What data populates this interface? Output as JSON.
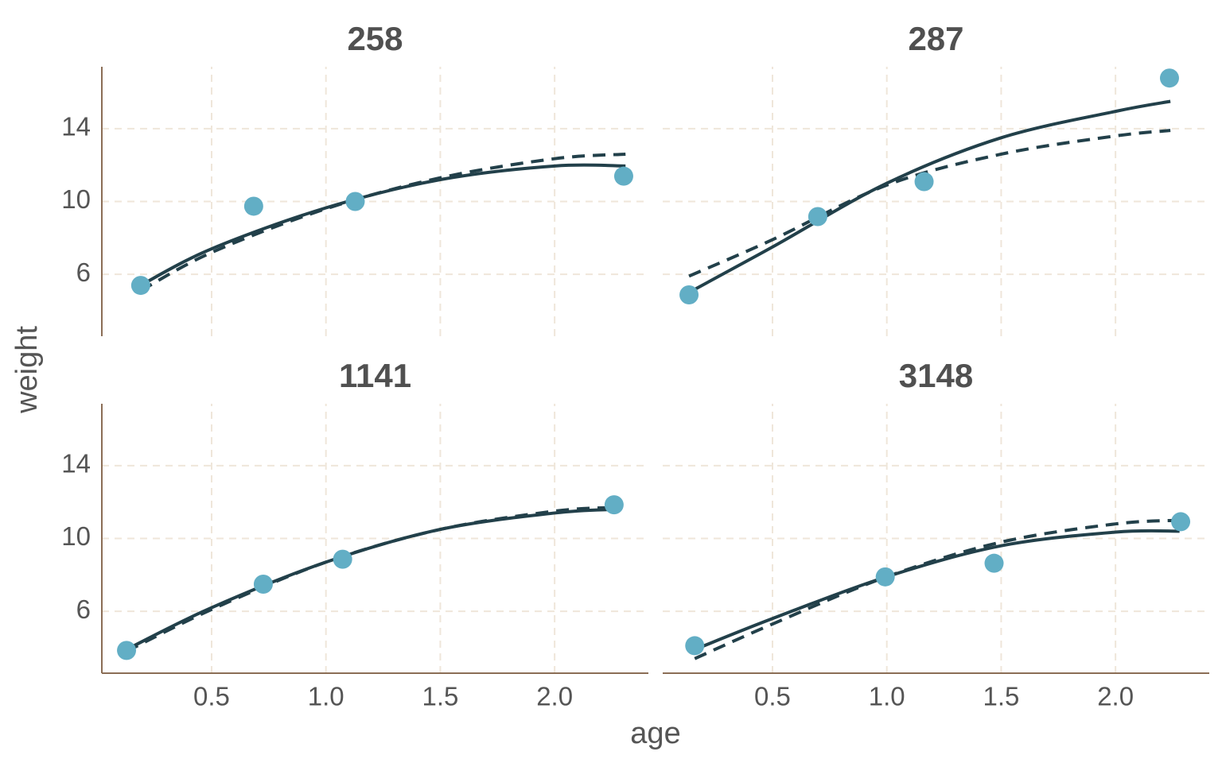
{
  "chart_data": {
    "type": "scatter",
    "xlabel": "age",
    "ylabel": "weight",
    "xlim": [
      0.02,
      2.41
    ],
    "ylim": [
      2.6,
      17.4
    ],
    "xticks": [
      0.5,
      {
        "value": 1,
        "label": "1.0"
      },
      1.5,
      {
        "value": 2,
        "label": "2.0"
      }
    ],
    "yticks": [
      6,
      10,
      14
    ],
    "grid": true,
    "point_color": "#62aec5",
    "line_color": "#22404a",
    "grid_color": "#efe6da",
    "axis_color": "#8b6e56",
    "facets": [
      {
        "title": "258",
        "points": {
          "x": [
            0.19,
            0.684,
            1.128,
            2.302
          ],
          "y": [
            5.39,
            9.74,
            10.0,
            11.39
          ]
        },
        "lines": [
          {
            "style": "solid",
            "x": [
              0.19,
              0.5,
              1.0,
              1.5,
              2.0,
              2.31
            ],
            "y": [
              5.4,
              7.4,
              9.65,
              11.2,
              11.95,
              11.95
            ]
          },
          {
            "style": "dashed",
            "x": [
              0.19,
              0.5,
              1.0,
              1.5,
              2.0,
              2.31
            ],
            "y": [
              5.1,
              7.2,
              9.6,
              11.3,
              12.35,
              12.6
            ]
          }
        ]
      },
      {
        "title": "287",
        "points": {
          "x": [
            0.135,
            0.698,
            1.163,
            2.236
          ],
          "y": [
            4.87,
            9.17,
            11.09,
            16.78
          ]
        },
        "lines": [
          {
            "style": "solid",
            "x": [
              0.135,
              0.5,
              1.0,
              1.5,
              2.0,
              2.24
            ],
            "y": [
              5.0,
              7.5,
              11.0,
              13.5,
              14.95,
              15.5
            ]
          },
          {
            "style": "dashed",
            "x": [
              0.135,
              0.5,
              1.0,
              1.5,
              2.0,
              2.24
            ],
            "y": [
              5.9,
              7.9,
              10.9,
              12.6,
              13.6,
              13.9
            ]
          }
        ]
      },
      {
        "title": "1141",
        "points": {
          "x": [
            0.128,
            0.726,
            1.073,
            2.26
          ],
          "y": [
            3.85,
            7.49,
            8.86,
            11.85
          ]
        },
        "lines": [
          {
            "style": "solid",
            "x": [
              0.128,
              0.5,
              1.0,
              1.5,
              2.0,
              2.26
            ],
            "y": [
              3.9,
              6.2,
              8.7,
              10.5,
              11.4,
              11.6
            ]
          },
          {
            "style": "dashed",
            "x": [
              0.128,
              0.5,
              1.0,
              1.5,
              2.0,
              2.26
            ],
            "y": [
              3.8,
              6.1,
              8.7,
              10.5,
              11.5,
              11.7
            ]
          }
        ]
      },
      {
        "title": "3148",
        "points": {
          "x": [
            0.16,
            0.993,
            1.469,
            2.285
          ],
          "y": [
            4.11,
            7.89,
            8.64,
            10.92
          ]
        },
        "lines": [
          {
            "style": "solid",
            "x": [
              0.16,
              0.5,
              1.0,
              1.5,
              2.0,
              2.28
            ],
            "y": [
              3.9,
              5.6,
              7.9,
              9.6,
              10.35,
              10.4
            ]
          },
          {
            "style": "dashed",
            "x": [
              0.16,
              0.5,
              1.0,
              1.5,
              2.0,
              2.28
            ],
            "y": [
              3.4,
              5.3,
              7.9,
              9.8,
              10.8,
              11.0
            ]
          }
        ]
      }
    ]
  }
}
